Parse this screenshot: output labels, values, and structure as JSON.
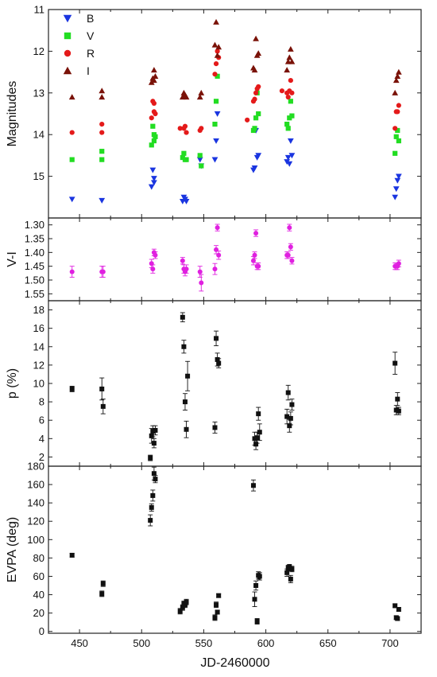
{
  "chart_data": [
    {
      "type": "scatter",
      "panel": "magnitudes",
      "ylabel": "Magnitudes",
      "ylim": [
        11,
        16
      ],
      "y_inverted": true,
      "yticks": [
        11,
        12,
        13,
        14,
        15
      ],
      "legend": {
        "placement": "top-left"
      },
      "series": [
        {
          "name": "B",
          "marker": "triangle-down",
          "color": "#1a35e0",
          "x": [
            444,
            468,
            508,
            509,
            510,
            510,
            533,
            534,
            535,
            536,
            547,
            548,
            559,
            560,
            561,
            590,
            591,
            592,
            593,
            594,
            617,
            618,
            619,
            620,
            621,
            704,
            705,
            706,
            707
          ],
          "y": [
            15.55,
            15.58,
            15.25,
            14.85,
            15.05,
            15.15,
            15.6,
            15.5,
            15.55,
            15.6,
            14.6,
            14.75,
            14.6,
            14.15,
            13.5,
            14.85,
            14.8,
            13.9,
            14.55,
            14.5,
            14.65,
            14.55,
            14.7,
            14.15,
            14.5,
            15.5,
            15.3,
            15.1,
            15.0
          ]
        },
        {
          "name": "V",
          "marker": "square",
          "color": "#22dd22",
          "x": [
            444,
            468,
            468,
            508,
            509,
            510,
            510,
            511,
            533,
            534,
            535,
            536,
            547,
            548,
            559,
            560,
            561,
            590,
            591,
            592,
            593,
            594,
            617,
            618,
            619,
            620,
            621,
            704,
            705,
            706,
            707
          ],
          "y": [
            14.6,
            14.4,
            14.6,
            14.25,
            13.8,
            14.15,
            14.0,
            14.05,
            14.55,
            14.45,
            14.6,
            14.6,
            14.5,
            14.75,
            13.75,
            13.2,
            12.6,
            13.9,
            13.85,
            13.6,
            13.0,
            13.5,
            13.75,
            13.85,
            13.6,
            13.2,
            13.55,
            14.45,
            14.05,
            13.9,
            14.15
          ]
        },
        {
          "name": "R",
          "marker": "circle",
          "color": "#e41a1a",
          "x": [
            444,
            468,
            468,
            508,
            509,
            510,
            510,
            511,
            531,
            534,
            535,
            536,
            547,
            548,
            559,
            560,
            561,
            562,
            585,
            590,
            591,
            592,
            593,
            594,
            613,
            617,
            618,
            619,
            620,
            621,
            704,
            705,
            706,
            707
          ],
          "y": [
            13.95,
            13.75,
            13.95,
            13.6,
            13.2,
            13.45,
            13.25,
            13.5,
            13.85,
            13.85,
            13.8,
            13.95,
            13.9,
            13.85,
            12.55,
            12.3,
            12.0,
            12.15,
            13.65,
            13.2,
            13.15,
            13.0,
            12.9,
            12.85,
            12.95,
            13.0,
            13.1,
            12.95,
            12.7,
            13.0,
            13.85,
            13.45,
            13.45,
            13.3
          ]
        },
        {
          "name": "I",
          "marker": "triangle-up",
          "color": "#7a1208",
          "x": [
            444,
            468,
            468,
            508,
            509,
            510,
            510,
            511,
            533,
            534,
            535,
            536,
            547,
            548,
            559,
            560,
            561,
            562,
            590,
            591,
            592,
            593,
            594,
            617,
            618,
            619,
            620,
            621,
            704,
            705,
            706,
            707
          ],
          "y": [
            13.1,
            12.95,
            13.1,
            12.75,
            12.65,
            12.7,
            12.45,
            12.6,
            13.1,
            13.0,
            13.05,
            13.1,
            13.1,
            13.0,
            11.85,
            11.3,
            12.1,
            11.9,
            12.4,
            12.45,
            11.7,
            12.1,
            12.05,
            12.45,
            12.25,
            12.15,
            11.95,
            12.25,
            13.0,
            12.7,
            12.6,
            12.5
          ]
        }
      ]
    },
    {
      "type": "scatter",
      "panel": "color-index",
      "ylabel": "V-I",
      "ylim": [
        1.275,
        1.575
      ],
      "y_inverted": true,
      "yticks": [
        1.3,
        1.35,
        1.4,
        1.45,
        1.5,
        1.55
      ],
      "series": [
        {
          "name": "",
          "marker": "circle",
          "color": "#e020e0",
          "x": [
            444,
            468,
            469,
            508,
            509,
            510,
            511,
            533,
            534,
            535,
            536,
            547,
            548,
            559,
            560,
            561,
            562,
            590,
            591,
            592,
            593,
            594,
            617,
            618,
            619,
            620,
            621,
            704,
            705,
            706,
            707
          ],
          "y": [
            1.47,
            1.47,
            1.47,
            1.44,
            1.46,
            1.4,
            1.41,
            1.43,
            1.46,
            1.47,
            1.46,
            1.47,
            1.51,
            1.46,
            1.39,
            1.31,
            1.41,
            1.43,
            1.41,
            1.33,
            1.45,
            1.45,
            1.41,
            1.41,
            1.31,
            1.38,
            1.43,
            1.45,
            1.45,
            1.45,
            1.44
          ],
          "err": [
            0.02,
            0.02,
            0.02,
            0.015,
            0.015,
            0.012,
            0.012,
            0.012,
            0.015,
            0.015,
            0.015,
            0.02,
            0.03,
            0.02,
            0.015,
            0.012,
            0.015,
            0.015,
            0.012,
            0.012,
            0.012,
            0.012,
            0.012,
            0.012,
            0.012,
            0.012,
            0.012,
            0.012,
            0.012,
            0.012,
            0.012
          ]
        }
      ]
    },
    {
      "type": "scatter",
      "panel": "polarization-degree",
      "ylabel": "p (%)",
      "ylim": [
        1,
        19
      ],
      "yticks": [
        2,
        4,
        6,
        8,
        10,
        12,
        14,
        16,
        18
      ],
      "series": [
        {
          "name": "",
          "marker": "square",
          "color": "#111111",
          "x": [
            444,
            468,
            469,
            507,
            508,
            509,
            510,
            511,
            533,
            534,
            535,
            536,
            537,
            559,
            560,
            561,
            562,
            591,
            592,
            593,
            594,
            595,
            617,
            618,
            619,
            620,
            621,
            704,
            705,
            706,
            707
          ],
          "y": [
            9.4,
            9.4,
            7.5,
            1.9,
            4.3,
            4.8,
            3.5,
            4.9,
            17.2,
            14.0,
            8.0,
            5.0,
            10.8,
            5.2,
            14.9,
            12.6,
            12.2,
            4.0,
            3.4,
            4.1,
            6.7,
            4.7,
            6.4,
            9.0,
            5.4,
            6.2,
            7.7,
            12.2,
            7.1,
            8.3,
            7.0
          ],
          "err": [
            0.3,
            1.2,
            0.8,
            0.3,
            0.8,
            0.6,
            0.5,
            0.5,
            0.5,
            0.7,
            0.9,
            0.9,
            1.6,
            0.6,
            0.8,
            0.7,
            0.5,
            0.7,
            0.6,
            0.6,
            0.7,
            0.9,
            0.8,
            0.8,
            0.7,
            0.7,
            0.6,
            1.2,
            0.5,
            0.7,
            0.4
          ]
        }
      ]
    },
    {
      "type": "scatter",
      "panel": "polarization-angle",
      "ylabel": "EVPA (deg)",
      "xlabel": "JD-2460000",
      "xlim": [
        425,
        725
      ],
      "xticks": [
        450,
        500,
        550,
        600,
        650,
        700
      ],
      "ylim": [
        -2,
        180
      ],
      "yticks": [
        0,
        20,
        40,
        60,
        80,
        100,
        120,
        140,
        160,
        180
      ],
      "series": [
        {
          "name": "",
          "marker": "square",
          "color": "#111111",
          "x": [
            444,
            468,
            469,
            507,
            508,
            509,
            510,
            511,
            531,
            533,
            534,
            535,
            536,
            559,
            560,
            561,
            562,
            590,
            591,
            592,
            593,
            594,
            595,
            617,
            618,
            619,
            620,
            621,
            704,
            705,
            706,
            707
          ],
          "y": [
            83,
            41,
            52,
            121,
            135,
            148,
            172,
            166,
            22,
            26,
            30,
            29,
            32,
            15,
            29,
            21,
            39,
            159,
            35,
            50,
            11,
            61,
            60,
            64,
            69,
            70,
            57,
            68,
            28,
            15,
            14,
            24
          ],
          "err": [
            2,
            3,
            3,
            6,
            4,
            6,
            7,
            4,
            3,
            3,
            3,
            3,
            3,
            3,
            3,
            2,
            2,
            6,
            8,
            5,
            3,
            4,
            4,
            4,
            3,
            3,
            4,
            3,
            2,
            2,
            2,
            2
          ],
          "err_shown": [
            44,
            42,
            43,
            43,
            43,
            43,
            43,
            43,
            43,
            43,
            43,
            43,
            43,
            43,
            43,
            43,
            43,
            43,
            43,
            43,
            43,
            43,
            43,
            43,
            43,
            43,
            43,
            43,
            43,
            43,
            43,
            43
          ]
        }
      ]
    }
  ],
  "legend_labels": [
    "B",
    "V",
    "R",
    "I"
  ],
  "xlabel": "JD-2460000"
}
